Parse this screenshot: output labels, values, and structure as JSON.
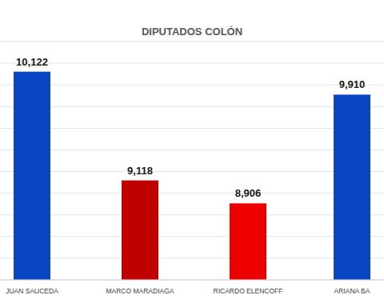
{
  "chart_data": {
    "type": "bar",
    "title": "DIPUTADOS COLÓN",
    "categories": [
      "JUAN SAUCEDA",
      "MARCO MARADIAGA",
      "RICARDO ELENCOFF",
      "ARIANA BA"
    ],
    "values": [
      10122,
      9118,
      8906,
      9910
    ],
    "value_labels": [
      "10,122",
      "9,118",
      "8,906",
      "9,910"
    ],
    "colors": [
      "#0a45c4",
      "#c00000",
      "#ee0000",
      "#0a45c4"
    ],
    "ylim": [
      8200,
      10400
    ],
    "yticks": [
      8200,
      8400,
      8600,
      8800,
      9000,
      9200,
      9400,
      9600,
      9800,
      10000,
      10200,
      10400
    ],
    "grid": true,
    "data_labels": true,
    "tick_labels": false
  }
}
